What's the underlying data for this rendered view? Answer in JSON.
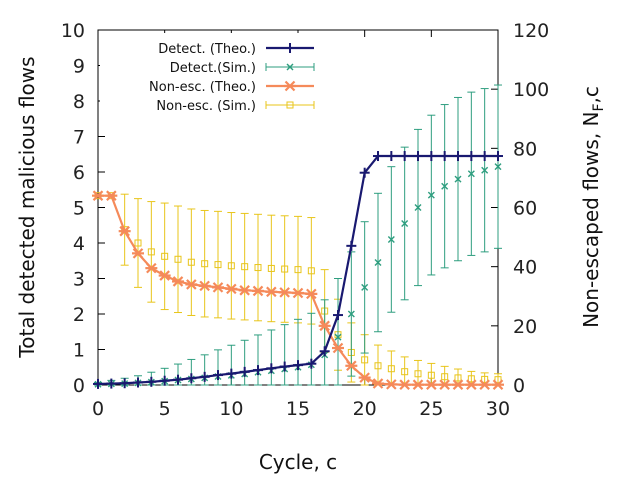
{
  "chart_data": {
    "type": "line",
    "x_axis": {
      "label": "Cycle, c",
      "range": [
        0,
        30
      ],
      "ticks": [
        0,
        5,
        10,
        15,
        20,
        25,
        30
      ],
      "tick_labels": [
        "0",
        "5",
        "10",
        "15",
        "20",
        "25",
        "30"
      ]
    },
    "y_axis_left": {
      "label": "Total detected malicious flows",
      "range": [
        0,
        10
      ],
      "ticks": [
        0,
        1,
        2,
        3,
        4,
        5,
        6,
        7,
        8,
        9,
        10
      ],
      "tick_labels": [
        "0",
        "1",
        "2",
        "3",
        "4",
        "5",
        "6",
        "7",
        "8",
        "9",
        "10"
      ]
    },
    "y_axis_right": {
      "label": "Non-escaped flows, N",
      "label_subscript": "F",
      "label_suffix": ",c",
      "range": [
        0,
        120
      ],
      "ticks": [
        0,
        20,
        40,
        60,
        80,
        100,
        120
      ],
      "tick_labels": [
        "0",
        "20",
        "40",
        "60",
        "80",
        "100",
        "120"
      ]
    },
    "legend": {
      "position": "top-left"
    },
    "series": [
      {
        "name": "Detect. (Theo.)",
        "axis": "left",
        "color": "#191970",
        "marker": "plus",
        "line": true,
        "x": [
          0,
          1,
          2,
          3,
          4,
          5,
          6,
          7,
          8,
          9,
          10,
          11,
          12,
          13,
          14,
          15,
          16,
          17,
          18,
          19,
          20,
          21,
          22,
          23,
          24,
          25,
          26,
          27,
          28,
          29,
          30
        ],
        "y": [
          0.03,
          0.04,
          0.05,
          0.07,
          0.09,
          0.12,
          0.15,
          0.19,
          0.23,
          0.28,
          0.32,
          0.37,
          0.42,
          0.47,
          0.52,
          0.56,
          0.6,
          0.95,
          1.97,
          3.92,
          5.98,
          6.45,
          6.45,
          6.45,
          6.45,
          6.45,
          6.45,
          6.45,
          6.45,
          6.45,
          6.45
        ]
      },
      {
        "name": "Detect.(Sim.)",
        "axis": "left",
        "color": "#2e9e7f",
        "marker": "cross",
        "line": false,
        "x": [
          0,
          1,
          2,
          3,
          4,
          5,
          6,
          7,
          8,
          9,
          10,
          11,
          12,
          13,
          14,
          15,
          16,
          17,
          18,
          19,
          20,
          21,
          22,
          23,
          24,
          25,
          26,
          27,
          28,
          29,
          30
        ],
        "y": [
          0.02,
          0.03,
          0.04,
          0.06,
          0.08,
          0.11,
          0.14,
          0.17,
          0.2,
          0.24,
          0.27,
          0.31,
          0.36,
          0.4,
          0.45,
          0.5,
          0.57,
          0.85,
          1.35,
          2.0,
          2.75,
          3.45,
          4.1,
          4.55,
          5.0,
          5.35,
          5.6,
          5.8,
          5.95,
          6.05,
          6.15
        ],
        "err": [
          0.05,
          0.1,
          0.15,
          0.2,
          0.28,
          0.36,
          0.45,
          0.55,
          0.65,
          0.75,
          0.85,
          0.95,
          1.05,
          1.15,
          1.25,
          1.35,
          1.45,
          1.55,
          1.65,
          1.75,
          1.85,
          1.95,
          2.05,
          2.15,
          2.2,
          2.25,
          2.3,
          2.3,
          2.3,
          2.3,
          2.3
        ]
      },
      {
        "name": "Non-esc. (Theo.)",
        "axis": "right",
        "color": "#f58a5a",
        "marker": "star",
        "line": true,
        "x": [
          0,
          1,
          2,
          3,
          4,
          5,
          6,
          7,
          8,
          9,
          10,
          11,
          12,
          13,
          14,
          15,
          16,
          17,
          18,
          19,
          20,
          21,
          22,
          23,
          24,
          25,
          26,
          27,
          28,
          29,
          30
        ],
        "y": [
          64,
          64,
          52,
          44.5,
          39.5,
          37,
          35,
          34,
          33.5,
          33,
          32.5,
          32,
          31.8,
          31.5,
          31.3,
          31.1,
          30.8,
          20,
          12.5,
          6.5,
          2.5,
          0.5,
          0.2,
          0.1,
          0.1,
          0.1,
          0.1,
          0.1,
          0.1,
          0.1,
          0.1
        ]
      },
      {
        "name": "Non-esc. (Sim.)",
        "axis": "right",
        "color": "#e8c51a",
        "marker": "square",
        "line": false,
        "x": [
          0,
          1,
          2,
          3,
          4,
          5,
          6,
          7,
          8,
          9,
          10,
          11,
          12,
          13,
          14,
          15,
          16,
          17,
          18,
          19,
          20,
          21,
          22,
          23,
          24,
          25,
          26,
          27,
          28,
          29,
          30
        ],
        "y": [
          64,
          64,
          52.5,
          48,
          45,
          43.5,
          42.5,
          41.5,
          41,
          40.7,
          40.3,
          40,
          39.7,
          39.4,
          39.2,
          39,
          38.6,
          25,
          17,
          11,
          8.5,
          6.5,
          5.5,
          4.5,
          3.8,
          3.3,
          2.8,
          2.4,
          2.1,
          1.9,
          1.8
        ],
        "err": [
          0,
          0,
          12,
          15,
          17,
          18,
          18,
          18,
          18,
          18,
          18,
          18,
          18,
          18,
          18,
          18,
          18,
          14,
          12,
          10,
          8.5,
          7,
          6,
          5,
          4.5,
          4,
          3.5,
          3,
          2.5,
          2.2,
          2
        ]
      }
    ]
  }
}
